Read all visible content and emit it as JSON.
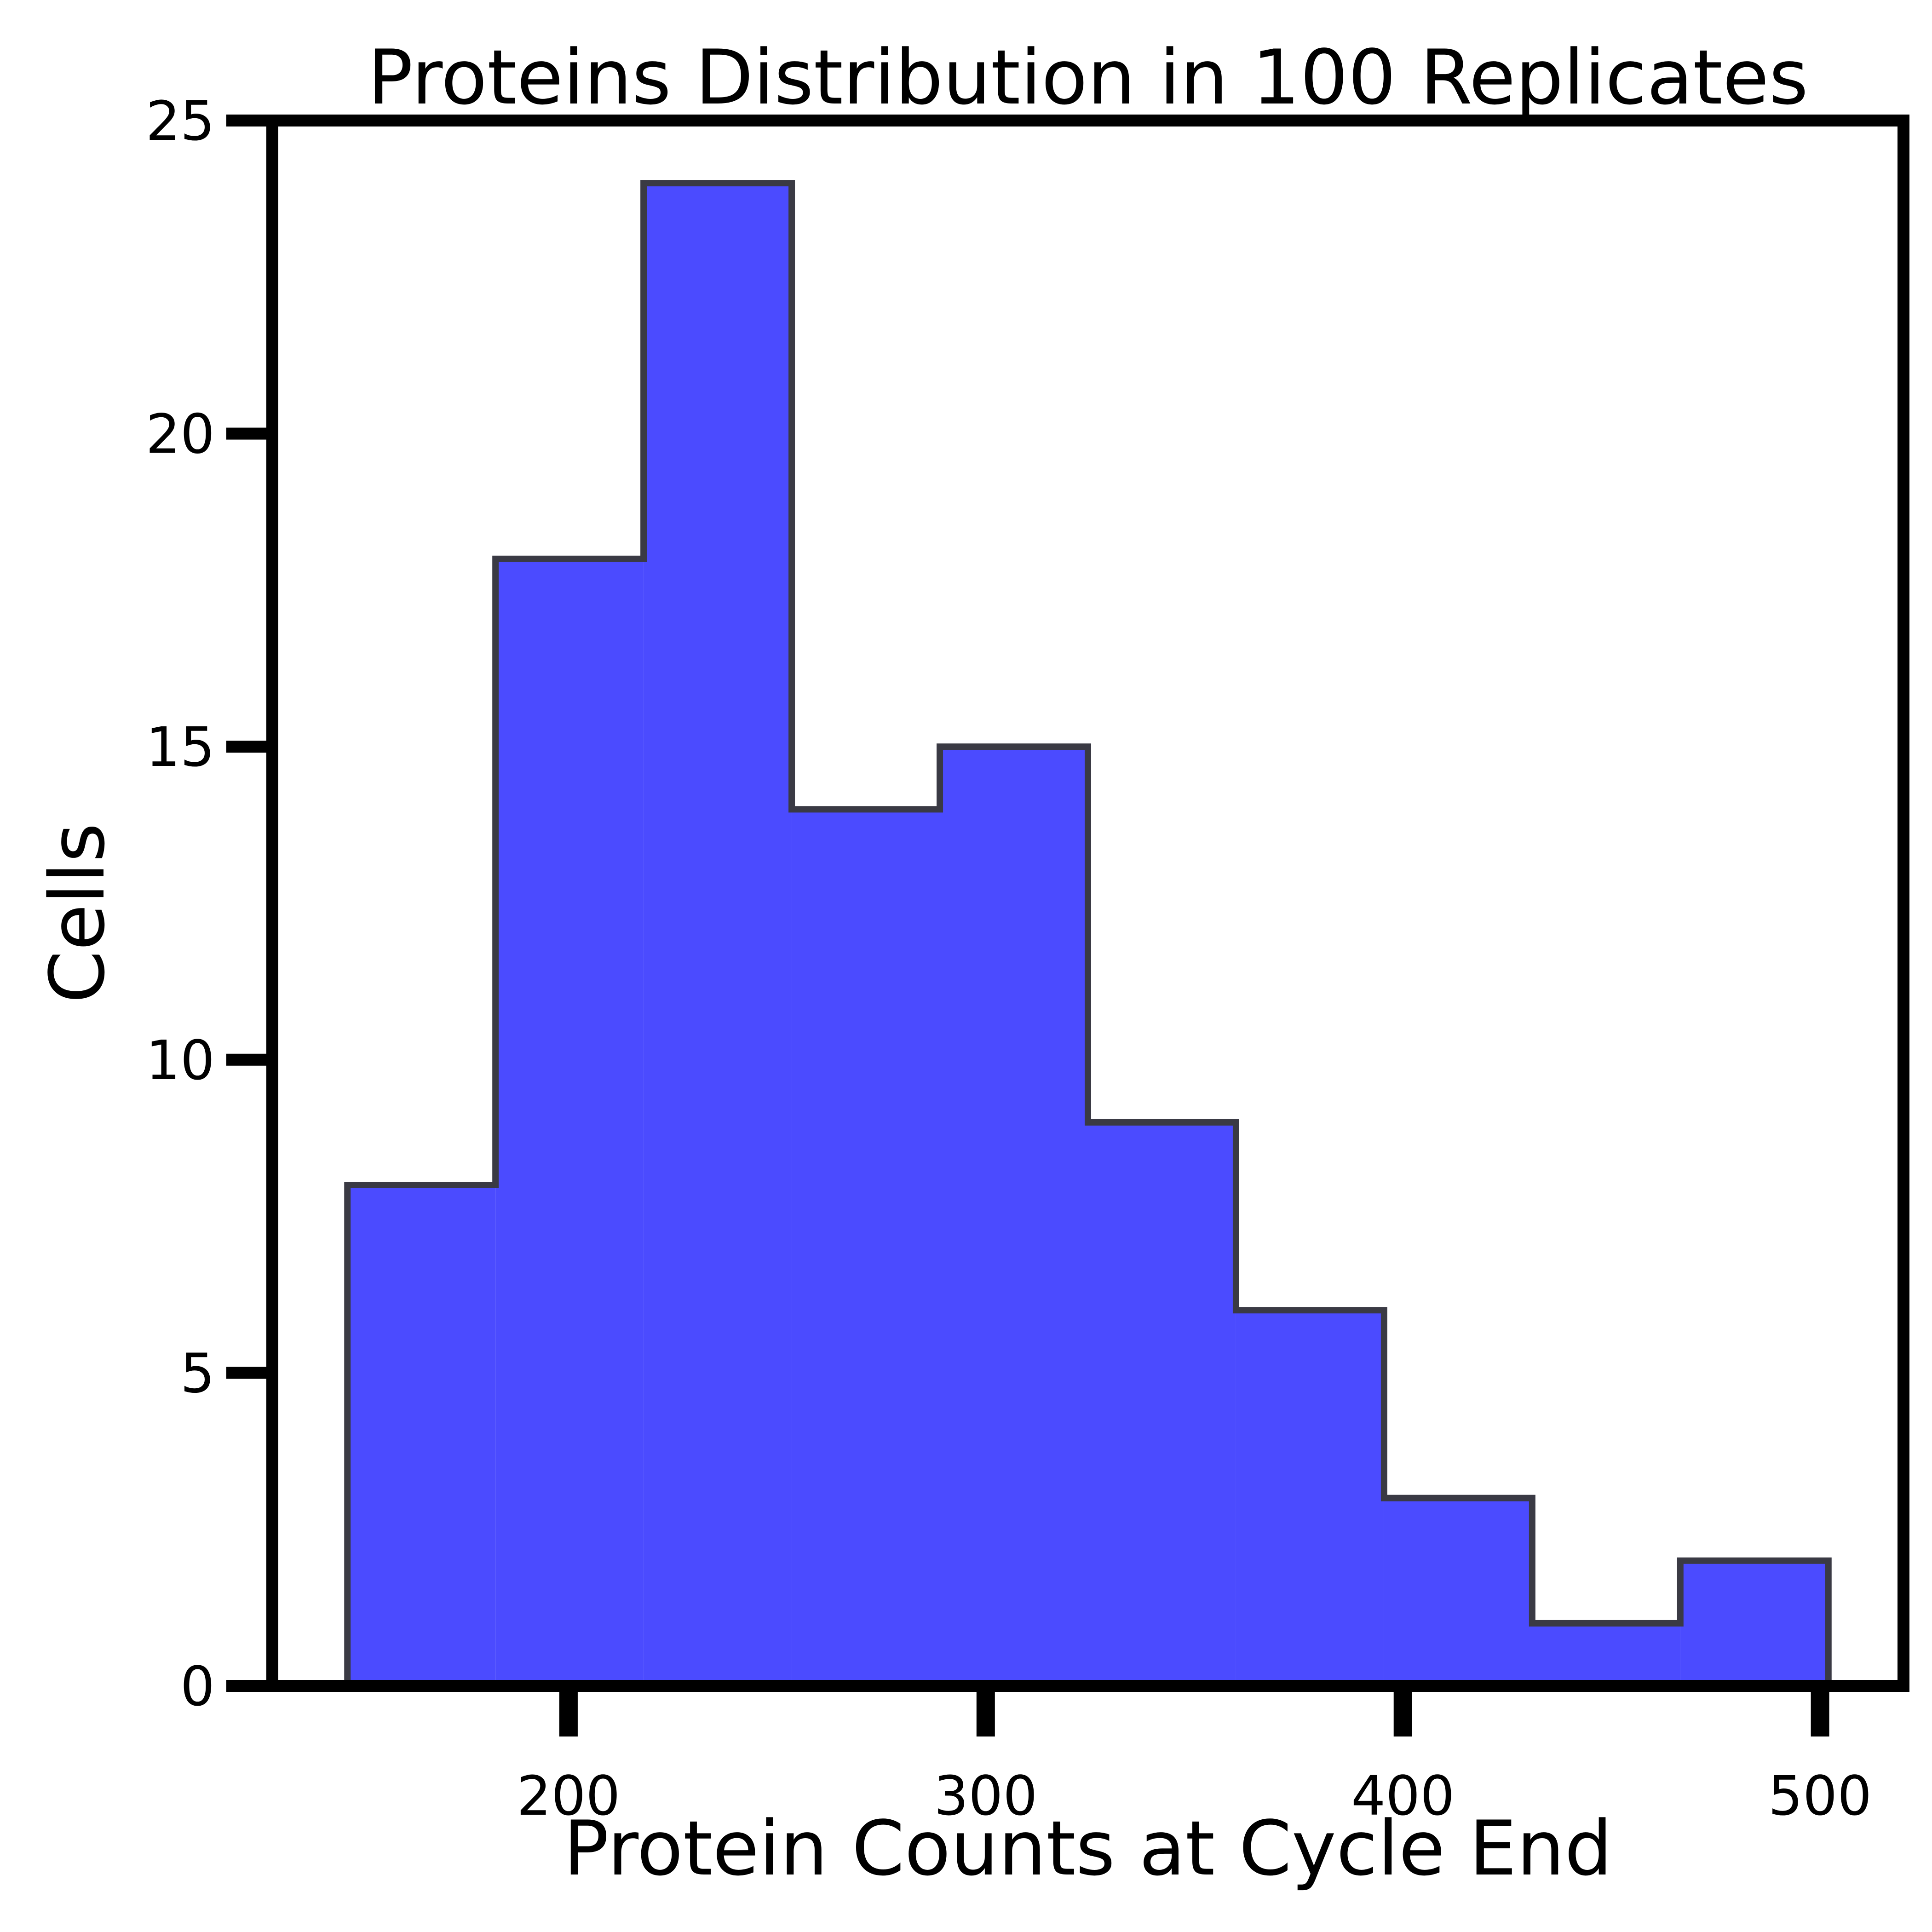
{
  "chart_data": {
    "type": "bar",
    "title": "Proteins Distribution in 100 Replicates",
    "xlabel": "Protein Counts at Cycle End",
    "ylabel": "Cells",
    "xlim": [
      129,
      520
    ],
    "ylim": [
      0,
      25
    ],
    "xticks": [
      200,
      300,
      400,
      500
    ],
    "yticks": [
      0,
      5,
      10,
      15,
      20,
      25
    ],
    "bin_edges": [
      147,
      182.5,
      218,
      253.5,
      289,
      324.5,
      360,
      395.5,
      431,
      466.5,
      502
    ],
    "counts": [
      8,
      18,
      24,
      14,
      15,
      9,
      6,
      3,
      1,
      2
    ],
    "fill_color": "#4b4bff",
    "edge_color": "#3a3a44",
    "grid": false,
    "legend": "none"
  }
}
